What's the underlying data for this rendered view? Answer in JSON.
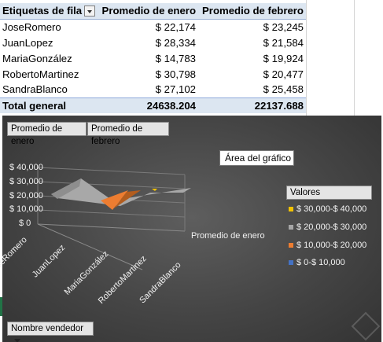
{
  "pivot": {
    "headers": {
      "rows": "Etiquetas de fila",
      "jan": "Promedio de enero",
      "feb": "Promedio de febrero"
    },
    "rows": [
      {
        "name": "JoseRomero",
        "jan": "$ 22,174",
        "feb": "$ 23,245"
      },
      {
        "name": "JuanLopez",
        "jan": "$ 28,334",
        "feb": "$ 21,584"
      },
      {
        "name": "MariaGonzález",
        "jan": "$ 14,783",
        "feb": "$ 19,924"
      },
      {
        "name": "RobertoMartinez",
        "jan": "$ 30,798",
        "feb": "$ 20,477"
      },
      {
        "name": "SandraBlanco",
        "jan": "$ 27,102",
        "feb": "$ 25,458"
      }
    ],
    "total": {
      "name": "Total general",
      "jan": "24638.204",
      "feb": "22137.688"
    }
  },
  "chart": {
    "field_buttons": {
      "jan": "Promedio de enero",
      "feb": "Promedio de febrero",
      "vendor": "Nombre vendedor"
    },
    "tooltip": "Área del gráfico",
    "legend": {
      "title": "Valores",
      "items": [
        {
          "label": "$ 30,000-$ 40,000",
          "color": "#f2c200"
        },
        {
          "label": "$ 20,000-$ 30,000",
          "color": "#a6a6a6"
        },
        {
          "label": "$ 10,000-$ 20,000",
          "color": "#ed7d31"
        },
        {
          "label": "$ 0-$ 10,000",
          "color": "#4472c4"
        }
      ]
    },
    "series_label": "Promedio de enero"
  },
  "chart_data": {
    "type": "surface",
    "categories": [
      "JoseRomero",
      "JuanLopez",
      "MariaGonzález",
      "RobertoMartinez",
      "SandraBlanco"
    ],
    "series": [
      {
        "name": "Promedio de enero",
        "values": [
          22174,
          28334,
          14783,
          30798,
          27102
        ]
      },
      {
        "name": "Promedio de febrero",
        "values": [
          23245,
          21584,
          19924,
          20477,
          25458
        ]
      }
    ],
    "y_ticks": [
      "$ 0",
      "$ 10,000",
      "$ 20,000",
      "$ 30,000",
      "$ 40,000"
    ],
    "ylim": [
      0,
      40000
    ],
    "legend_position": "right"
  }
}
